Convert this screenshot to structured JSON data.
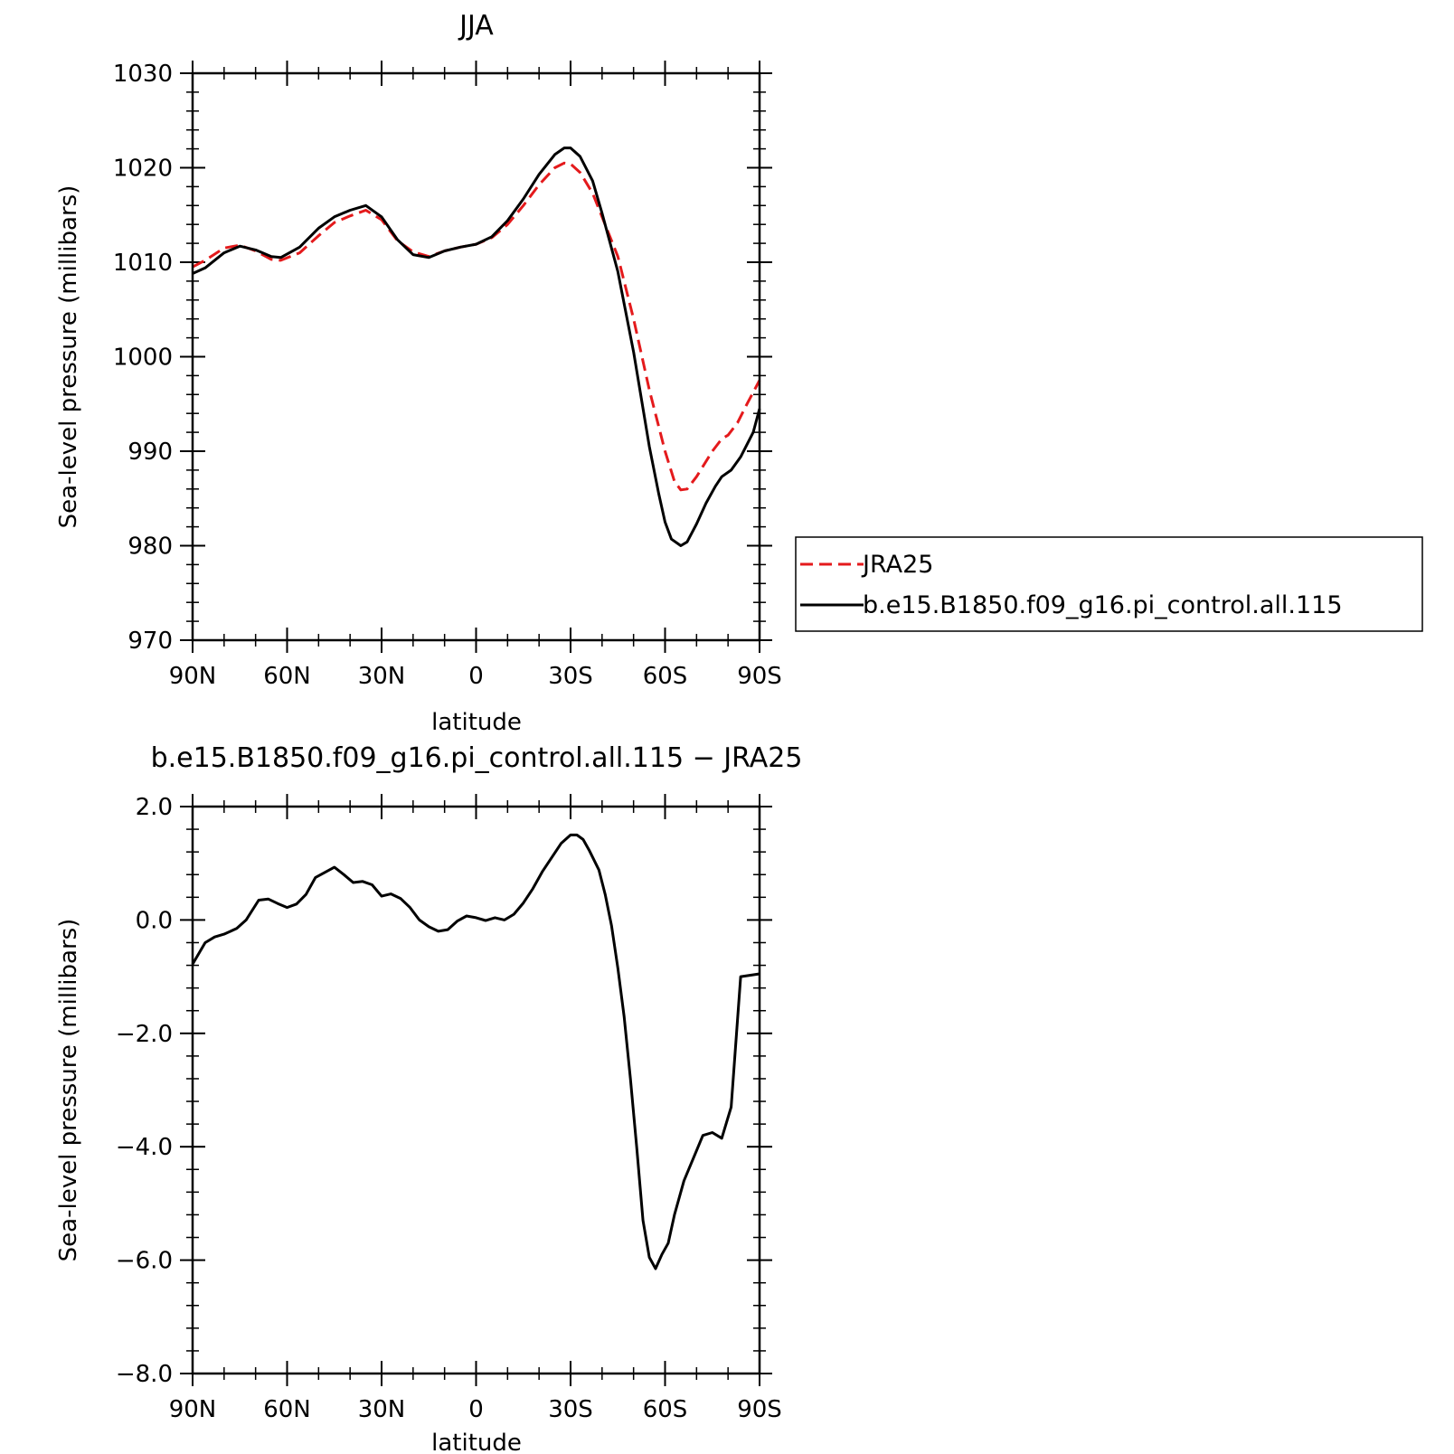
{
  "chart_data": [
    {
      "type": "line",
      "title": "JJA",
      "xlabel": "latitude",
      "ylabel": "Sea-level pressure (millibars)",
      "xlim": [
        90,
        -90
      ],
      "ylim": [
        970,
        1030
      ],
      "x_ticks": [
        {
          "value": 90,
          "label": "90N"
        },
        {
          "value": 60,
          "label": "60N"
        },
        {
          "value": 30,
          "label": "30N"
        },
        {
          "value": 0,
          "label": "0"
        },
        {
          "value": -30,
          "label": "30S"
        },
        {
          "value": -60,
          "label": "60S"
        },
        {
          "value": -90,
          "label": "90S"
        }
      ],
      "y_ticks": [
        "970",
        "980",
        "990",
        "1000",
        "1010",
        "1020",
        "1030"
      ],
      "legend": {
        "position": "right"
      },
      "series": [
        {
          "name": "JRA25",
          "color": "#e41a1c",
          "dash": "dashed",
          "points": [
            [
              90,
              1009.5
            ],
            [
              86,
              1010.2
            ],
            [
              80,
              1011.5
            ],
            [
              75,
              1011.8
            ],
            [
              70,
              1011.2
            ],
            [
              65,
              1010.3
            ],
            [
              62,
              1010.2
            ],
            [
              56,
              1011.0
            ],
            [
              50,
              1012.8
            ],
            [
              45,
              1014.2
            ],
            [
              40,
              1014.9
            ],
            [
              35,
              1015.5
            ],
            [
              30,
              1014.5
            ],
            [
              25,
              1012.3
            ],
            [
              20,
              1011.1
            ],
            [
              15,
              1010.6
            ],
            [
              10,
              1011.2
            ],
            [
              5,
              1011.6
            ],
            [
              0,
              1011.9
            ],
            [
              -5,
              1012.6
            ],
            [
              -10,
              1014.0
            ],
            [
              -15,
              1016.0
            ],
            [
              -20,
              1018.2
            ],
            [
              -25,
              1020.0
            ],
            [
              -28,
              1020.5
            ],
            [
              -30,
              1020.4
            ],
            [
              -33,
              1019.5
            ],
            [
              -37,
              1017.3
            ],
            [
              -40,
              1014.8
            ],
            [
              -45,
              1010.6
            ],
            [
              -50,
              1004.0
            ],
            [
              -55,
              996.5
            ],
            [
              -60,
              990.0
            ],
            [
              -63,
              986.8
            ],
            [
              -65,
              985.9
            ],
            [
              -67,
              986.0
            ],
            [
              -70,
              987.3
            ],
            [
              -75,
              990.0
            ],
            [
              -78,
              991.3
            ],
            [
              -80,
              991.7
            ],
            [
              -83,
              993.0
            ],
            [
              -86,
              995.0
            ],
            [
              -90,
              997.5
            ]
          ]
        },
        {
          "name": "b.e15.B1850.f09_g16.pi_control.all.115",
          "color": "#000000",
          "dash": "solid",
          "points": [
            [
              90,
              1008.8
            ],
            [
              86,
              1009.4
            ],
            [
              80,
              1011.0
            ],
            [
              75,
              1011.7
            ],
            [
              70,
              1011.3
            ],
            [
              65,
              1010.6
            ],
            [
              62,
              1010.5
            ],
            [
              56,
              1011.6
            ],
            [
              50,
              1013.6
            ],
            [
              45,
              1014.8
            ],
            [
              40,
              1015.5
            ],
            [
              35,
              1016.0
            ],
            [
              30,
              1014.8
            ],
            [
              25,
              1012.4
            ],
            [
              20,
              1010.8
            ],
            [
              15,
              1010.5
            ],
            [
              10,
              1011.2
            ],
            [
              5,
              1011.6
            ],
            [
              0,
              1011.9
            ],
            [
              -5,
              1012.7
            ],
            [
              -10,
              1014.4
            ],
            [
              -15,
              1016.7
            ],
            [
              -20,
              1019.3
            ],
            [
              -25,
              1021.4
            ],
            [
              -28,
              1022.1
            ],
            [
              -30,
              1022.1
            ],
            [
              -33,
              1021.2
            ],
            [
              -37,
              1018.6
            ],
            [
              -40,
              1015.2
            ],
            [
              -45,
              1009.0
            ],
            [
              -50,
              1000.5
            ],
            [
              -55,
              990.5
            ],
            [
              -58,
              985.5
            ],
            [
              -60,
              982.5
            ],
            [
              -62,
              980.7
            ],
            [
              -65,
              980.0
            ],
            [
              -67,
              980.4
            ],
            [
              -70,
              982.3
            ],
            [
              -73,
              984.5
            ],
            [
              -76,
              986.3
            ],
            [
              -78,
              987.3
            ],
            [
              -81,
              988.0
            ],
            [
              -84,
              989.4
            ],
            [
              -88,
              992.0
            ],
            [
              -90,
              994.5
            ]
          ]
        }
      ]
    },
    {
      "type": "line",
      "title": "b.e15.B1850.f09_g16.pi_control.all.115 − JRA25",
      "xlabel": "latitude",
      "ylabel": "Sea-level pressure (millibars)",
      "xlim": [
        90,
        -90
      ],
      "ylim": [
        -8,
        2
      ],
      "x_ticks": [
        {
          "value": 90,
          "label": "90N"
        },
        {
          "value": 60,
          "label": "60N"
        },
        {
          "value": 30,
          "label": "30N"
        },
        {
          "value": 0,
          "label": "0"
        },
        {
          "value": -30,
          "label": "30S"
        },
        {
          "value": -60,
          "label": "60S"
        },
        {
          "value": -90,
          "label": "90S"
        }
      ],
      "y_ticks": [
        "−8.0",
        "−6.0",
        "−4.0",
        "−2.0",
        "0.0",
        "2.0"
      ],
      "series": [
        {
          "color": "#000000",
          "dash": "solid",
          "points": [
            [
              90,
              -0.78
            ],
            [
              86,
              -0.4
            ],
            [
              83,
              -0.3
            ],
            [
              80,
              -0.25
            ],
            [
              76,
              -0.15
            ],
            [
              73,
              0.0
            ],
            [
              69,
              0.35
            ],
            [
              66,
              0.37
            ],
            [
              63,
              0.29
            ],
            [
              60,
              0.22
            ],
            [
              57,
              0.28
            ],
            [
              54,
              0.45
            ],
            [
              51,
              0.75
            ],
            [
              45,
              0.93
            ],
            [
              42,
              0.8
            ],
            [
              39,
              0.66
            ],
            [
              36,
              0.68
            ],
            [
              33,
              0.62
            ],
            [
              30,
              0.42
            ],
            [
              27,
              0.46
            ],
            [
              24,
              0.38
            ],
            [
              21,
              0.22
            ],
            [
              18,
              0.0
            ],
            [
              15,
              -0.12
            ],
            [
              12,
              -0.2
            ],
            [
              9,
              -0.17
            ],
            [
              6,
              -0.02
            ],
            [
              3,
              0.07
            ],
            [
              0,
              0.04
            ],
            [
              -3,
              -0.01
            ],
            [
              -6,
              0.04
            ],
            [
              -9,
              0.0
            ],
            [
              -12,
              0.1
            ],
            [
              -15,
              0.3
            ],
            [
              -18,
              0.55
            ],
            [
              -21,
              0.85
            ],
            [
              -24,
              1.1
            ],
            [
              -27,
              1.35
            ],
            [
              -30,
              1.5
            ],
            [
              -32,
              1.5
            ],
            [
              -34,
              1.42
            ],
            [
              -36,
              1.22
            ],
            [
              -39,
              0.88
            ],
            [
              -41,
              0.45
            ],
            [
              -43,
              -0.1
            ],
            [
              -45,
              -0.85
            ],
            [
              -47,
              -1.7
            ],
            [
              -49,
              -2.8
            ],
            [
              -51,
              -4.0
            ],
            [
              -53,
              -5.3
            ],
            [
              -55,
              -5.95
            ],
            [
              -57,
              -6.15
            ],
            [
              -59,
              -5.9
            ],
            [
              -61,
              -5.7
            ],
            [
              -63,
              -5.2
            ],
            [
              -66,
              -4.6
            ],
            [
              -69,
              -4.2
            ],
            [
              -72,
              -3.8
            ],
            [
              -75,
              -3.75
            ],
            [
              -78,
              -3.85
            ],
            [
              -81,
              -3.3
            ],
            [
              -84,
              -1.0
            ],
            [
              -90,
              -0.95
            ]
          ]
        }
      ]
    }
  ]
}
